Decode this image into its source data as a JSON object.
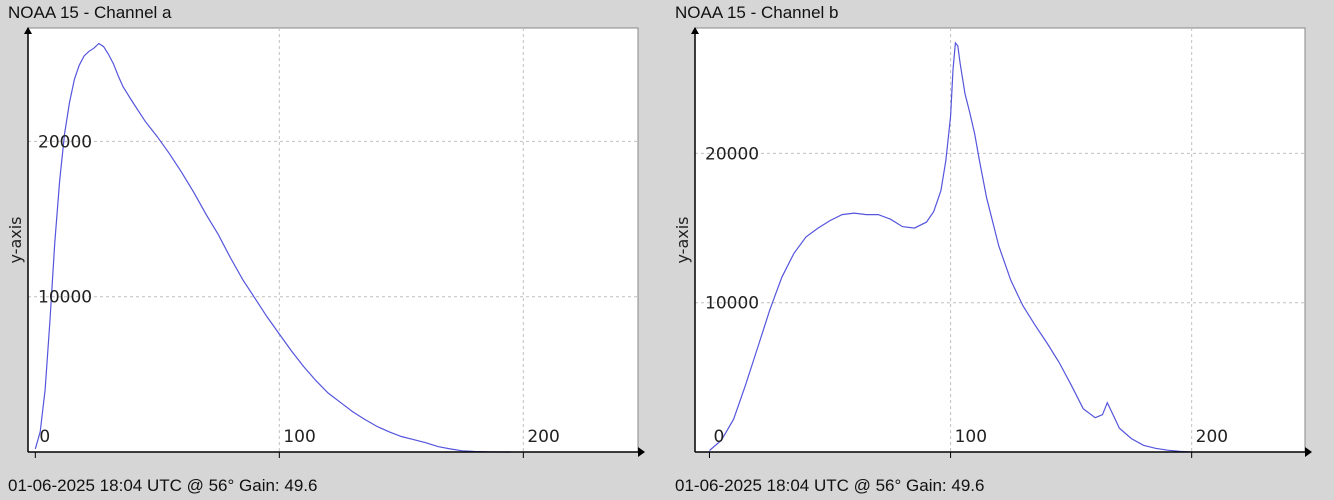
{
  "colors": {
    "background": "#d6d6d6",
    "plot_area": "#ffffff",
    "series_line": "#5555dd",
    "grid": "#c0c0c0",
    "axis": "#000000"
  },
  "chart_data": [
    {
      "type": "line",
      "title": "NOAA 15 - Channel a",
      "footer": "01-06-2025 18:04 UTC @ 56° Gain: 49.6",
      "ylabel": "y-axis",
      "xlabel": "",
      "xlim": [
        -3,
        247
      ],
      "ylim": [
        0,
        27300
      ],
      "xticks": [
        0,
        100,
        200
      ],
      "yticks": [
        10000,
        20000
      ],
      "grid": true,
      "series": [
        {
          "x": [
            0,
            2,
            4,
            6,
            8,
            10,
            12,
            14,
            16,
            18,
            20,
            22,
            24,
            26,
            28,
            30,
            32,
            34,
            36,
            40,
            45,
            50,
            55,
            60,
            65,
            70,
            75,
            80,
            85,
            90,
            95,
            100,
            105,
            110,
            115,
            120,
            125,
            130,
            135,
            140,
            145,
            150,
            155,
            160,
            165,
            170,
            175,
            180,
            185,
            190,
            195
          ],
          "y": [
            200,
            1300,
            4000,
            8500,
            13500,
            17500,
            20500,
            22500,
            24000,
            24900,
            25500,
            25800,
            26000,
            26300,
            26100,
            25600,
            25000,
            24200,
            23500,
            22500,
            21300,
            20300,
            19200,
            18000,
            16700,
            15300,
            14000,
            12500,
            11100,
            9900,
            8700,
            7600,
            6500,
            5500,
            4600,
            3800,
            3200,
            2600,
            2100,
            1650,
            1300,
            1000,
            800,
            600,
            350,
            200,
            80,
            30,
            10,
            0,
            0
          ]
        }
      ]
    },
    {
      "type": "line",
      "title": "NOAA 15 - Channel b",
      "footer": "01-06-2025 18:04 UTC @ 56° Gain: 49.6",
      "ylabel": "y-axis",
      "xlabel": "",
      "xlim": [
        -6,
        247
      ],
      "ylim": [
        0,
        28400
      ],
      "xticks": [
        0,
        100,
        200
      ],
      "yticks": [
        10000,
        20000
      ],
      "grid": true,
      "series": [
        {
          "x": [
            0,
            5,
            10,
            15,
            20,
            25,
            30,
            35,
            40,
            45,
            50,
            55,
            60,
            65,
            70,
            75,
            80,
            85,
            90,
            93,
            96,
            98,
            100,
            101,
            102,
            103,
            104,
            106,
            108,
            110,
            112,
            115,
            120,
            125,
            130,
            135,
            140,
            145,
            150,
            155,
            160,
            163,
            165,
            168,
            170,
            175,
            180,
            185,
            190,
            195,
            200
          ],
          "y": [
            100,
            800,
            2200,
            4500,
            7000,
            9500,
            11700,
            13300,
            14400,
            15000,
            15500,
            15900,
            16000,
            15900,
            15900,
            15600,
            15100,
            15000,
            15400,
            16100,
            17500,
            19500,
            22500,
            25600,
            27400,
            27200,
            26000,
            24000,
            22700,
            21300,
            19500,
            17000,
            13800,
            11500,
            9800,
            8500,
            7300,
            6000,
            4500,
            2900,
            2300,
            2500,
            3300,
            2300,
            1600,
            900,
            450,
            250,
            120,
            50,
            0
          ]
        }
      ]
    }
  ]
}
